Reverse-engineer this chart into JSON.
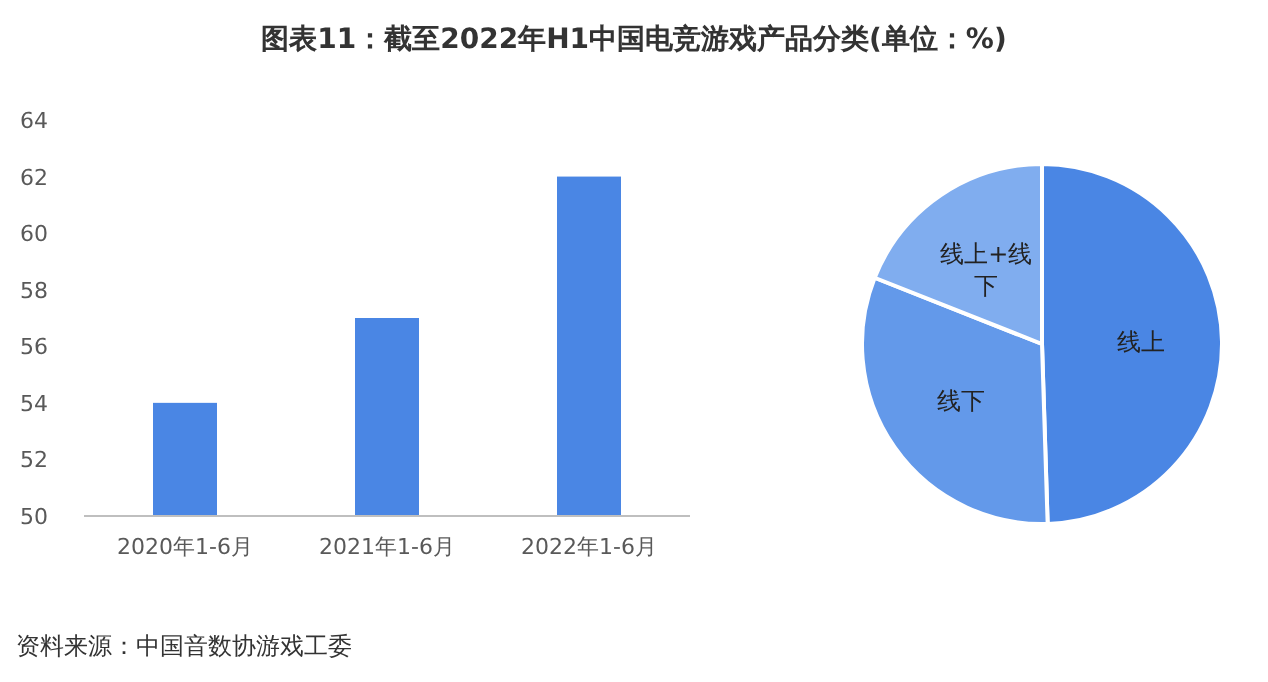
{
  "chart_data": [
    {
      "type": "bar",
      "title": "图表11：截至2022年H1中国电竞游戏产品分类(单位：%)",
      "annotations": [
        "资料来源：中国音数协游戏工委"
      ],
      "categories": [
        "2020年1-6月",
        "2021年1-6月",
        "2022年1-6月"
      ],
      "values": [
        54,
        57,
        62
      ],
      "color": "#4a86e4",
      "ylim": [
        50,
        64
      ],
      "yticks": [
        50,
        52,
        54,
        56,
        58,
        60,
        62,
        64
      ],
      "grid": false
    },
    {
      "type": "pie",
      "categories": [
        "线上",
        "线下",
        "线上+线下"
      ],
      "values": [
        49.5,
        31.5,
        19
      ],
      "colors": [
        "#4a86e4",
        "#6399ea",
        "#80adef"
      ]
    }
  ]
}
